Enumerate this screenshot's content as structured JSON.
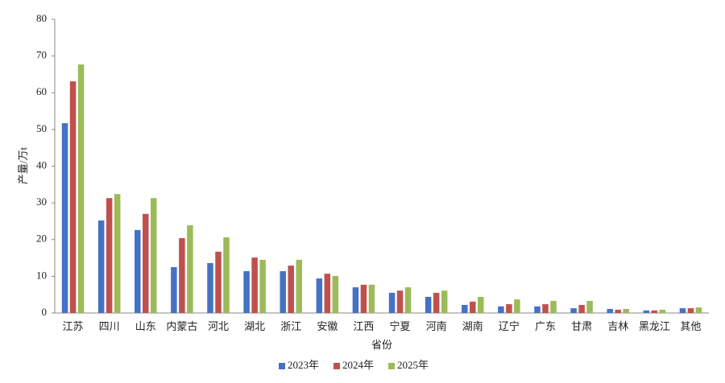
{
  "chart_data": {
    "type": "bar",
    "y_label": "产量/万t",
    "x_label": "省份",
    "categories": [
      "江苏",
      "四川",
      "山东",
      "内蒙古",
      "河北",
      "湖北",
      "浙江",
      "安徽",
      "江西",
      "宁夏",
      "河南",
      "湖南",
      "辽宁",
      "广东",
      "甘肃",
      "吉林",
      "黑龙江",
      "其他"
    ],
    "series": [
      {
        "name": "2023年",
        "color": "#4472c4",
        "values": [
          51.7,
          25.2,
          22.6,
          12.5,
          13.6,
          11.4,
          11.4,
          9.4,
          7.0,
          5.5,
          4.4,
          2.2,
          1.8,
          1.8,
          1.3,
          1.1,
          0.7,
          1.3
        ]
      },
      {
        "name": "2024年",
        "color": "#c0504d",
        "values": [
          63.1,
          31.3,
          27.0,
          20.4,
          16.7,
          15.1,
          12.9,
          10.7,
          7.7,
          6.1,
          5.5,
          3.1,
          2.4,
          2.4,
          2.2,
          0.9,
          0.7,
          1.3
        ]
      },
      {
        "name": "2025年",
        "color": "#9bbb59",
        "values": [
          67.7,
          32.4,
          31.3,
          23.9,
          20.6,
          14.5,
          14.5,
          10.1,
          7.7,
          7.0,
          6.1,
          4.4,
          3.7,
          3.3,
          3.3,
          1.1,
          0.9,
          1.5
        ]
      }
    ],
    "ylim": [
      0,
      80
    ],
    "yticks": [
      0,
      10,
      20,
      30,
      40,
      50,
      60,
      70,
      80
    ],
    "grid": false,
    "legend": "bottom"
  }
}
